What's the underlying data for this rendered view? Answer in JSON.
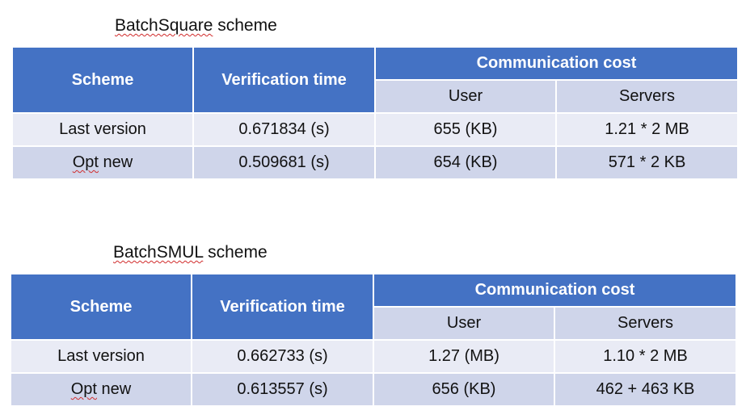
{
  "tables": [
    {
      "caption_name": "BatchSquare",
      "caption_suffix": " scheme",
      "headers": {
        "scheme": "Scheme",
        "verification": "Verification time",
        "communication": "Communication cost",
        "user": "User",
        "servers": "Servers"
      },
      "rows": [
        {
          "scheme": "Last version",
          "verification": "0.671834 (s)",
          "user": "655 (KB)",
          "servers": "1.21 * 2 MB"
        },
        {
          "scheme_main": "Opt",
          "scheme_rest": " new",
          "verification": "0.509681 (s)",
          "user": "654 (KB)",
          "servers": "571 * 2 KB"
        }
      ]
    },
    {
      "caption_name": "BatchSMUL",
      "caption_suffix": " scheme",
      "headers": {
        "scheme": "Scheme",
        "verification": "Verification time",
        "communication": "Communication cost",
        "user": "User",
        "servers": "Servers"
      },
      "rows": [
        {
          "scheme": "Last version",
          "verification": "0.662733 (s)",
          "user": "1.27 (MB)",
          "servers": "1.10 * 2 MB"
        },
        {
          "scheme_main": "Opt",
          "scheme_rest": " new",
          "verification": "0.613557 (s)",
          "user": "656 (KB)",
          "servers": "462 + 463 KB"
        }
      ]
    }
  ]
}
